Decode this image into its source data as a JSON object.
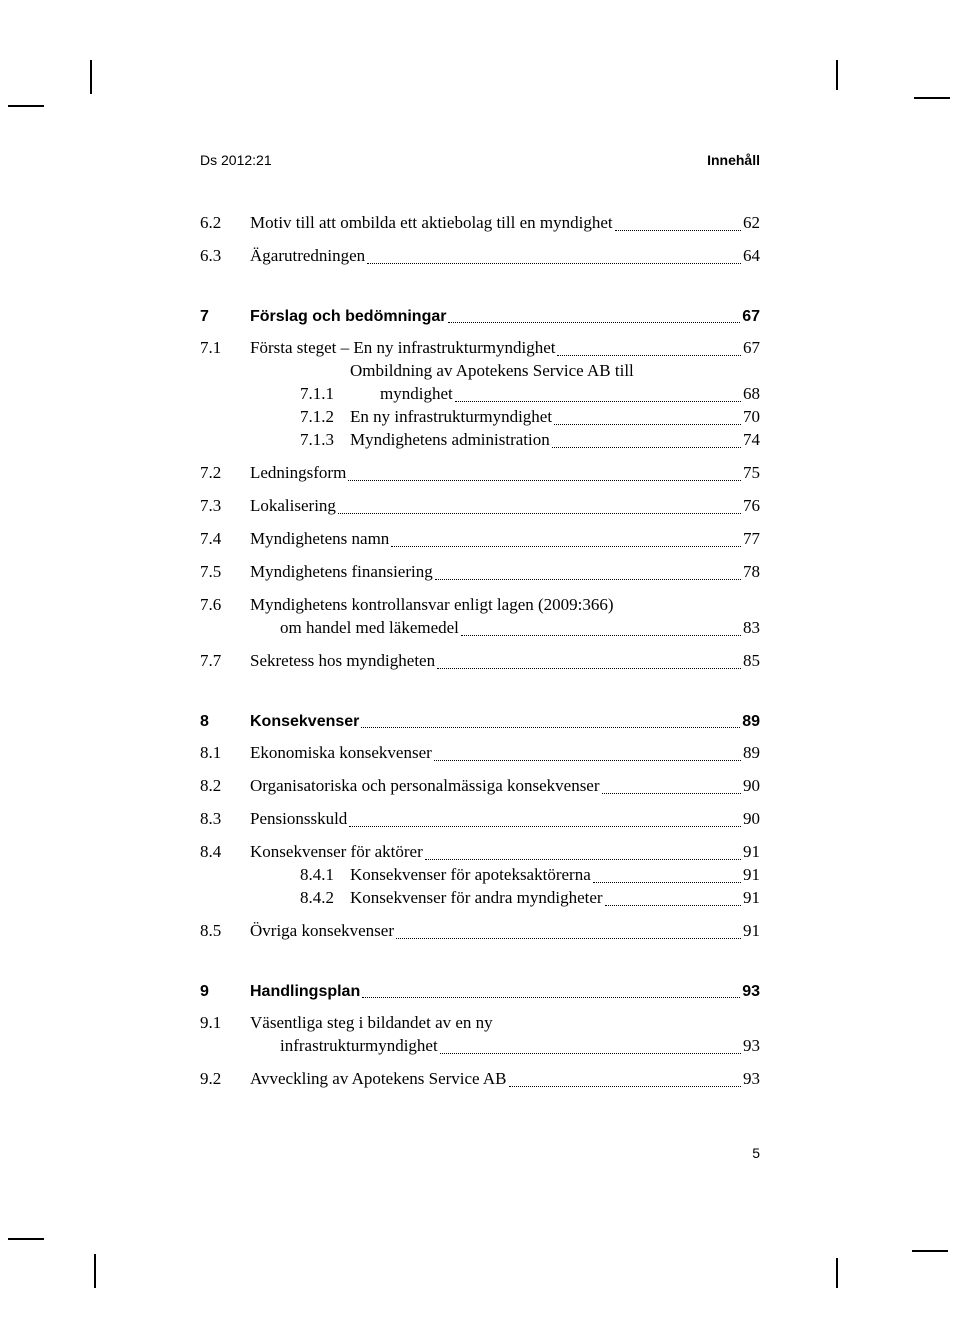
{
  "header": {
    "left": "Ds 2012:21",
    "right": "Innehåll"
  },
  "footer": {
    "page": "5"
  },
  "toc": [
    {
      "num": "6.2",
      "text": "Motiv till att ombilda ett aktiebolag till en myndighet",
      "page": "62"
    },
    {
      "num": "6.3",
      "text": "Ägarutredningen",
      "page": "64",
      "gapAfter": true
    },
    {
      "num": "7",
      "text": "Förslag och bedömningar",
      "page": "67",
      "bold": true
    },
    {
      "num": "7.1",
      "text": "Första steget – En ny infrastrukturmyndighet",
      "page": "67",
      "children": [
        {
          "num": "7.1.1",
          "text": "Ombildning av Apotekens Service AB till",
          "cont": "myndighet",
          "page": "68"
        },
        {
          "num": "7.1.2",
          "text": "En ny infrastrukturmyndighet",
          "page": "70"
        },
        {
          "num": "7.1.3",
          "text": "Myndighetens administration",
          "page": "74"
        }
      ]
    },
    {
      "num": "7.2",
      "text": "Ledningsform",
      "page": "75"
    },
    {
      "num": "7.3",
      "text": "Lokalisering",
      "page": "76"
    },
    {
      "num": "7.4",
      "text": "Myndighetens namn",
      "page": "77"
    },
    {
      "num": "7.5",
      "text": "Myndighetens finansiering",
      "page": "78"
    },
    {
      "num": "7.6",
      "text": "Myndighetens kontrollansvar enligt lagen (2009:366)",
      "cont": "om handel med läkemedel",
      "page": "83"
    },
    {
      "num": "7.7",
      "text": "Sekretess hos myndigheten",
      "page": "85",
      "gapAfter": true
    },
    {
      "num": "8",
      "text": "Konsekvenser",
      "page": "89",
      "bold": true
    },
    {
      "num": "8.1",
      "text": "Ekonomiska konsekvenser",
      "page": "89"
    },
    {
      "num": "8.2",
      "text": "Organisatoriska och personalmässiga konsekvenser",
      "page": "90"
    },
    {
      "num": "8.3",
      "text": "Pensionsskuld",
      "page": "90"
    },
    {
      "num": "8.4",
      "text": "Konsekvenser för aktörer",
      "page": "91",
      "children": [
        {
          "num": "8.4.1",
          "text": "Konsekvenser för apoteksaktörerna",
          "page": "91"
        },
        {
          "num": "8.4.2",
          "text": "Konsekvenser för andra myndigheter",
          "page": "91"
        }
      ]
    },
    {
      "num": "8.5",
      "text": "Övriga konsekvenser",
      "page": "91",
      "gapAfter": true
    },
    {
      "num": "9",
      "text": "Handlingsplan",
      "page": "93",
      "bold": true
    },
    {
      "num": "9.1",
      "text": "Väsentliga steg i bildandet av en ny",
      "cont": "infrastrukturmyndighet",
      "page": "93"
    },
    {
      "num": "9.2",
      "text": "Avveckling av Apotekens Service AB",
      "page": "93"
    }
  ],
  "style": {
    "background_color": "#ffffff",
    "text_color": "#000000",
    "body_font": "Times New Roman",
    "bold_font": "Arial",
    "body_fontsize_pt": 13,
    "header_fontsize_pt": 11
  }
}
